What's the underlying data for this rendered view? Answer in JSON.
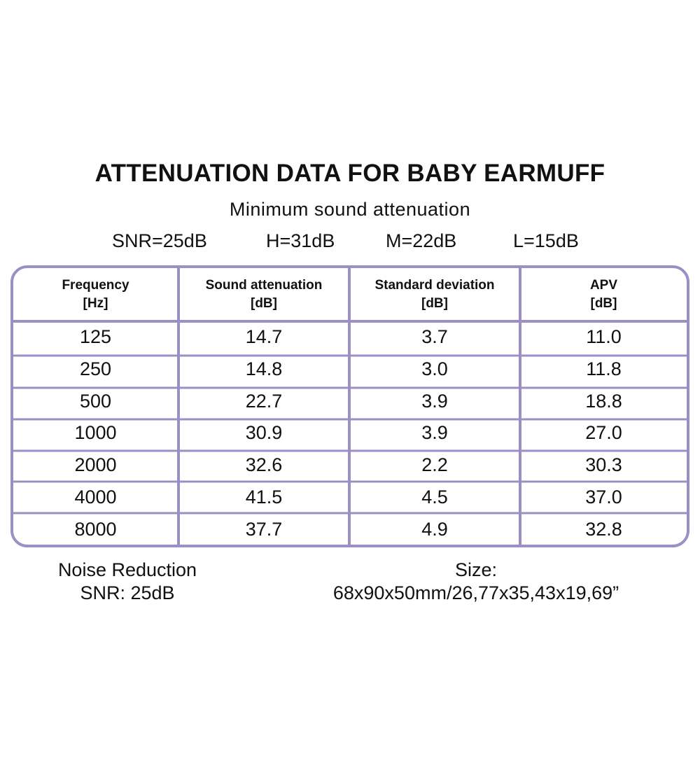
{
  "title": "ATTENUATION DATA FOR BABY EARMUFF",
  "subtitle": "Minimum sound attenuation",
  "ratings": [
    "SNR=25dB",
    "H=31dB",
    "M=22dB",
    "L=15dB"
  ],
  "colors": {
    "border": "#9b8fc6",
    "text": "#111111"
  },
  "table": {
    "headers": [
      {
        "line1": "Frequency",
        "line2": "[Hz]"
      },
      {
        "line1": "Sound attenuation",
        "line2": "[dB]"
      },
      {
        "line1": "Standard deviation",
        "line2": "[dB]"
      },
      {
        "line1": "APV",
        "line2": "[dB]"
      }
    ],
    "rows": [
      [
        "125",
        "14.7",
        "3.7",
        "11.0"
      ],
      [
        "250",
        "14.8",
        "3.0",
        "11.8"
      ],
      [
        "500",
        "22.7",
        "3.9",
        "18.8"
      ],
      [
        "1000",
        "30.9",
        "3.9",
        "27.0"
      ],
      [
        "2000",
        "32.6",
        "2.2",
        "30.3"
      ],
      [
        "4000",
        "41.5",
        "4.5",
        "37.0"
      ],
      [
        "8000",
        "37.7",
        "4.9",
        "32.8"
      ]
    ]
  },
  "footer": {
    "left_line1": "Noise Reduction",
    "left_line2": "SNR: 25dB",
    "right_line1": "Size:",
    "right_line2": "68x90x50mm/26,77x35,43x19,69”"
  }
}
